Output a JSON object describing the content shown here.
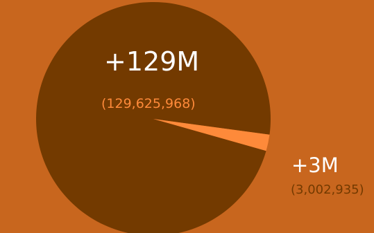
{
  "colors": {
    "background": "#c8661e",
    "large_slice": "#733a00",
    "small_slice": "#fe8a3a",
    "label_light": "#ffffff",
    "label_orange": "#fe8a3a",
    "label_dark": "#733a00"
  },
  "chart_data": {
    "type": "pie",
    "slices": [
      {
        "value": 129625968,
        "label": "+129M",
        "value_label": "(129,625,968)"
      },
      {
        "value": 3002935,
        "label": "+3M",
        "value_label": "(3,002,935)"
      }
    ],
    "title": "",
    "legend": "none"
  }
}
